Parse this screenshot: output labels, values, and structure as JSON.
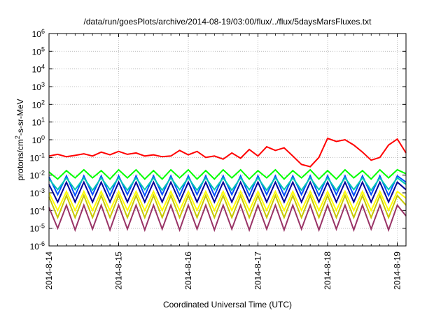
{
  "chart_data": {
    "type": "line",
    "title": "/data/run/goesPlots/archive/2014-08-19/03:00/flux/../flux/5daysMarsFluxes.txt",
    "xlabel": "Coordinated Universal Time (UTC)",
    "ylabel": {
      "prefix": "protons/cm",
      "sup": "2",
      "suffix": "-s-sr-MeV"
    },
    "y_scale": "log",
    "ylim": [
      1e-06,
      1000000.0
    ],
    "y_ticks": [
      {
        "base": "10",
        "exp": "-6"
      },
      {
        "base": "10",
        "exp": "-5"
      },
      {
        "base": "10",
        "exp": "-4"
      },
      {
        "base": "10",
        "exp": "-3"
      },
      {
        "base": "10",
        "exp": "-2"
      },
      {
        "base": "10",
        "exp": "-1"
      },
      {
        "base": "10",
        "exp": "0"
      },
      {
        "base": "10",
        "exp": "1"
      },
      {
        "base": "10",
        "exp": "2"
      },
      {
        "base": "10",
        "exp": "3"
      },
      {
        "base": "10",
        "exp": "4"
      },
      {
        "base": "10",
        "exp": "5"
      },
      {
        "base": "10",
        "exp": "6"
      }
    ],
    "x_range": [
      "2014-08-14 00:00",
      "2014-08-19 03:00"
    ],
    "x_ticks": [
      "2014-8-14",
      "2014-8-15",
      "2014-8-16",
      "2014-8-17",
      "2014-8-18",
      "2014-8-19"
    ],
    "grid": true,
    "legend": "none",
    "series": [
      {
        "color": "#ff0000",
        "x": [
          "2014-08-14 00:00",
          "2014-08-14 03:00",
          "2014-08-14 06:00",
          "2014-08-14 09:00",
          "2014-08-14 12:00",
          "2014-08-14 15:00",
          "2014-08-14 18:00",
          "2014-08-14 21:00",
          "2014-08-15 00:00",
          "2014-08-15 03:00",
          "2014-08-15 06:00",
          "2014-08-15 09:00",
          "2014-08-15 12:00",
          "2014-08-15 15:00",
          "2014-08-15 18:00",
          "2014-08-15 21:00",
          "2014-08-16 00:00",
          "2014-08-16 03:00",
          "2014-08-16 06:00",
          "2014-08-16 09:00",
          "2014-08-16 12:00",
          "2014-08-16 15:00",
          "2014-08-16 18:00",
          "2014-08-16 21:00",
          "2014-08-17 00:00",
          "2014-08-17 03:00",
          "2014-08-17 06:00",
          "2014-08-17 09:00",
          "2014-08-17 12:00",
          "2014-08-17 15:00",
          "2014-08-17 18:00",
          "2014-08-17 21:00",
          "2014-08-18 00:00",
          "2014-08-18 03:00",
          "2014-08-18 06:00",
          "2014-08-18 09:00",
          "2014-08-18 12:00",
          "2014-08-18 15:00",
          "2014-08-18 18:00",
          "2014-08-18 21:00",
          "2014-08-19 00:00",
          "2014-08-19 03:00"
        ],
        "y": [
          0.12,
          0.15,
          0.11,
          0.13,
          0.16,
          0.12,
          0.2,
          0.14,
          0.22,
          0.15,
          0.18,
          0.12,
          0.14,
          0.11,
          0.12,
          0.25,
          0.14,
          0.22,
          0.1,
          0.12,
          0.08,
          0.18,
          0.09,
          0.28,
          0.12,
          0.4,
          0.25,
          0.35,
          0.12,
          0.04,
          0.03,
          0.1,
          1.2,
          0.8,
          1.0,
          0.5,
          0.2,
          0.07,
          0.1,
          0.5,
          1.1,
          0.18
        ]
      },
      {
        "color": "#00ff00",
        "x": [
          "2014-08-14 00:00",
          "2014-08-14 03:00",
          "2014-08-14 06:00",
          "2014-08-14 09:00",
          "2014-08-14 12:00",
          "2014-08-14 15:00",
          "2014-08-14 18:00",
          "2014-08-14 21:00",
          "2014-08-15 00:00",
          "2014-08-15 03:00",
          "2014-08-15 06:00",
          "2014-08-15 09:00",
          "2014-08-15 12:00",
          "2014-08-15 15:00",
          "2014-08-15 18:00",
          "2014-08-15 21:00",
          "2014-08-16 00:00",
          "2014-08-16 03:00",
          "2014-08-16 06:00",
          "2014-08-16 09:00",
          "2014-08-16 12:00",
          "2014-08-16 15:00",
          "2014-08-16 18:00",
          "2014-08-16 21:00",
          "2014-08-17 00:00",
          "2014-08-17 03:00",
          "2014-08-17 06:00",
          "2014-08-17 09:00",
          "2014-08-17 12:00",
          "2014-08-17 15:00",
          "2014-08-17 18:00",
          "2014-08-17 21:00",
          "2014-08-18 00:00",
          "2014-08-18 03:00",
          "2014-08-18 06:00",
          "2014-08-18 09:00",
          "2014-08-18 12:00",
          "2014-08-18 15:00",
          "2014-08-18 18:00",
          "2014-08-18 21:00",
          "2014-08-19 00:00",
          "2014-08-19 03:00"
        ],
        "y": [
          0.015,
          0.006,
          0.018,
          0.007,
          0.02,
          0.007,
          0.018,
          0.006,
          0.02,
          0.007,
          0.02,
          0.006,
          0.018,
          0.006,
          0.02,
          0.007,
          0.02,
          0.006,
          0.018,
          0.006,
          0.02,
          0.007,
          0.02,
          0.006,
          0.018,
          0.007,
          0.02,
          0.006,
          0.018,
          0.007,
          0.02,
          0.006,
          0.018,
          0.006,
          0.02,
          0.007,
          0.018,
          0.006,
          0.02,
          0.007,
          0.02,
          0.012
        ]
      },
      {
        "color": "#00c8b4",
        "x": [
          "2014-08-14 00:00",
          "2014-08-14 03:00",
          "2014-08-14 06:00",
          "2014-08-14 09:00",
          "2014-08-14 12:00",
          "2014-08-14 15:00",
          "2014-08-14 18:00",
          "2014-08-14 21:00",
          "2014-08-15 00:00",
          "2014-08-15 03:00",
          "2014-08-15 06:00",
          "2014-08-15 09:00",
          "2014-08-15 12:00",
          "2014-08-15 15:00",
          "2014-08-15 18:00",
          "2014-08-15 21:00",
          "2014-08-16 00:00",
          "2014-08-16 03:00",
          "2014-08-16 06:00",
          "2014-08-16 09:00",
          "2014-08-16 12:00",
          "2014-08-16 15:00",
          "2014-08-16 18:00",
          "2014-08-16 21:00",
          "2014-08-17 00:00",
          "2014-08-17 03:00",
          "2014-08-17 06:00",
          "2014-08-17 09:00",
          "2014-08-17 12:00",
          "2014-08-17 15:00",
          "2014-08-17 18:00",
          "2014-08-17 21:00",
          "2014-08-18 00:00",
          "2014-08-18 03:00",
          "2014-08-18 06:00",
          "2014-08-18 09:00",
          "2014-08-18 12:00",
          "2014-08-18 15:00",
          "2014-08-18 18:00",
          "2014-08-18 21:00",
          "2014-08-19 00:00",
          "2014-08-19 03:00"
        ],
        "y": [
          0.006,
          0.0015,
          0.007,
          0.0015,
          0.007,
          0.0014,
          0.007,
          0.0015,
          0.007,
          0.0014,
          0.007,
          0.0015,
          0.007,
          0.0014,
          0.007,
          0.0015,
          0.007,
          0.0014,
          0.007,
          0.0015,
          0.007,
          0.0014,
          0.007,
          0.0015,
          0.007,
          0.0014,
          0.007,
          0.0015,
          0.007,
          0.0014,
          0.007,
          0.0015,
          0.007,
          0.0014,
          0.007,
          0.0015,
          0.007,
          0.0014,
          0.007,
          0.0015,
          0.007,
          0.003
        ]
      },
      {
        "color": "#0050ff",
        "x": [
          "2014-08-14 00:00",
          "2014-08-14 03:00",
          "2014-08-14 06:00",
          "2014-08-14 09:00",
          "2014-08-14 12:00",
          "2014-08-14 15:00",
          "2014-08-14 18:00",
          "2014-08-14 21:00",
          "2014-08-15 00:00",
          "2014-08-15 03:00",
          "2014-08-15 06:00",
          "2014-08-15 09:00",
          "2014-08-15 12:00",
          "2014-08-15 15:00",
          "2014-08-15 18:00",
          "2014-08-15 21:00",
          "2014-08-16 00:00",
          "2014-08-16 03:00",
          "2014-08-16 06:00",
          "2014-08-16 09:00",
          "2014-08-16 12:00",
          "2014-08-16 15:00",
          "2014-08-16 18:00",
          "2014-08-16 21:00",
          "2014-08-17 00:00",
          "2014-08-17 03:00",
          "2014-08-17 06:00",
          "2014-08-17 09:00",
          "2014-08-17 12:00",
          "2014-08-17 15:00",
          "2014-08-17 18:00",
          "2014-08-17 21:00",
          "2014-08-18 00:00",
          "2014-08-18 03:00",
          "2014-08-18 06:00",
          "2014-08-18 09:00",
          "2014-08-18 12:00",
          "2014-08-18 15:00",
          "2014-08-18 18:00",
          "2014-08-18 21:00",
          "2014-08-19 00:00",
          "2014-08-19 03:00"
        ],
        "y": [
          0.008,
          0.0008,
          0.009,
          0.0007,
          0.009,
          0.0008,
          0.009,
          0.0007,
          0.009,
          0.0008,
          0.009,
          0.0007,
          0.009,
          0.0008,
          0.009,
          0.0007,
          0.009,
          0.0008,
          0.009,
          0.0007,
          0.009,
          0.0008,
          0.009,
          0.0007,
          0.009,
          0.0008,
          0.009,
          0.0007,
          0.009,
          0.0008,
          0.009,
          0.0007,
          0.009,
          0.0008,
          0.009,
          0.0007,
          0.009,
          0.0008,
          0.009,
          0.0007,
          0.009,
          0.004
        ]
      },
      {
        "color": "#000099",
        "x": [
          "2014-08-14 00:00",
          "2014-08-14 03:00",
          "2014-08-14 06:00",
          "2014-08-14 09:00",
          "2014-08-14 12:00",
          "2014-08-14 15:00",
          "2014-08-14 18:00",
          "2014-08-14 21:00",
          "2014-08-15 00:00",
          "2014-08-15 03:00",
          "2014-08-15 06:00",
          "2014-08-15 09:00",
          "2014-08-15 12:00",
          "2014-08-15 15:00",
          "2014-08-15 18:00",
          "2014-08-15 21:00",
          "2014-08-16 00:00",
          "2014-08-16 03:00",
          "2014-08-16 06:00",
          "2014-08-16 09:00",
          "2014-08-16 12:00",
          "2014-08-16 15:00",
          "2014-08-16 18:00",
          "2014-08-16 21:00",
          "2014-08-17 00:00",
          "2014-08-17 03:00",
          "2014-08-17 06:00",
          "2014-08-17 09:00",
          "2014-08-17 12:00",
          "2014-08-17 15:00",
          "2014-08-17 18:00",
          "2014-08-17 21:00",
          "2014-08-18 00:00",
          "2014-08-18 03:00",
          "2014-08-18 06:00",
          "2014-08-18 09:00",
          "2014-08-18 12:00",
          "2014-08-18 15:00",
          "2014-08-18 18:00",
          "2014-08-18 21:00",
          "2014-08-19 00:00",
          "2014-08-19 03:00"
        ],
        "y": [
          0.003,
          0.0003,
          0.004,
          0.0003,
          0.004,
          0.0003,
          0.004,
          0.0003,
          0.004,
          0.0003,
          0.004,
          0.0003,
          0.004,
          0.0003,
          0.004,
          0.0003,
          0.004,
          0.0003,
          0.004,
          0.0003,
          0.004,
          0.0003,
          0.004,
          0.0003,
          0.004,
          0.0003,
          0.004,
          0.0003,
          0.004,
          0.0003,
          0.004,
          0.0003,
          0.004,
          0.0003,
          0.004,
          0.0003,
          0.004,
          0.0003,
          0.004,
          0.0003,
          0.004,
          0.0015
        ]
      },
      {
        "color": "#ffff00",
        "x": [
          "2014-08-14 00:00",
          "2014-08-14 03:00",
          "2014-08-14 06:00",
          "2014-08-14 09:00",
          "2014-08-14 12:00",
          "2014-08-14 15:00",
          "2014-08-14 18:00",
          "2014-08-14 21:00",
          "2014-08-15 00:00",
          "2014-08-15 03:00",
          "2014-08-15 06:00",
          "2014-08-15 09:00",
          "2014-08-15 12:00",
          "2014-08-15 15:00",
          "2014-08-15 18:00",
          "2014-08-15 21:00",
          "2014-08-16 00:00",
          "2014-08-16 03:00",
          "2014-08-16 06:00",
          "2014-08-16 09:00",
          "2014-08-16 12:00",
          "2014-08-16 15:00",
          "2014-08-16 18:00",
          "2014-08-16 21:00",
          "2014-08-17 00:00",
          "2014-08-17 03:00",
          "2014-08-17 06:00",
          "2014-08-17 09:00",
          "2014-08-17 12:00",
          "2014-08-17 15:00",
          "2014-08-17 18:00",
          "2014-08-17 21:00",
          "2014-08-18 00:00",
          "2014-08-18 03:00",
          "2014-08-18 06:00",
          "2014-08-18 09:00",
          "2014-08-18 12:00",
          "2014-08-18 15:00",
          "2014-08-18 18:00",
          "2014-08-18 21:00",
          "2014-08-19 00:00",
          "2014-08-19 03:00"
        ],
        "y": [
          0.001,
          0.0001,
          0.0012,
          0.0001,
          0.0012,
          0.0001,
          0.0012,
          0.0001,
          0.0012,
          0.0001,
          0.0012,
          0.0001,
          0.0012,
          0.0001,
          0.0012,
          0.0001,
          0.0012,
          0.0001,
          0.0012,
          0.0001,
          0.0012,
          0.0001,
          0.0012,
          0.0001,
          0.0012,
          0.0001,
          0.0012,
          0.0001,
          0.0012,
          0.0001,
          0.0012,
          0.0001,
          0.0012,
          0.0001,
          0.0012,
          0.0001,
          0.0012,
          0.0001,
          0.0012,
          0.0001,
          0.0012,
          0.0005
        ]
      },
      {
        "color": "#c8c800",
        "x": [
          "2014-08-14 00:00",
          "2014-08-14 03:00",
          "2014-08-14 06:00",
          "2014-08-14 09:00",
          "2014-08-14 12:00",
          "2014-08-14 15:00",
          "2014-08-14 18:00",
          "2014-08-14 21:00",
          "2014-08-15 00:00",
          "2014-08-15 03:00",
          "2014-08-15 06:00",
          "2014-08-15 09:00",
          "2014-08-15 12:00",
          "2014-08-15 15:00",
          "2014-08-15 18:00",
          "2014-08-15 21:00",
          "2014-08-16 00:00",
          "2014-08-16 03:00",
          "2014-08-16 06:00",
          "2014-08-16 09:00",
          "2014-08-16 12:00",
          "2014-08-16 15:00",
          "2014-08-16 18:00",
          "2014-08-16 21:00",
          "2014-08-17 00:00",
          "2014-08-17 03:00",
          "2014-08-17 06:00",
          "2014-08-17 09:00",
          "2014-08-17 12:00",
          "2014-08-17 15:00",
          "2014-08-17 18:00",
          "2014-08-17 21:00",
          "2014-08-18 00:00",
          "2014-08-18 03:00",
          "2014-08-18 06:00",
          "2014-08-18 09:00",
          "2014-08-18 12:00",
          "2014-08-18 15:00",
          "2014-08-18 18:00",
          "2014-08-18 21:00",
          "2014-08-19 00:00",
          "2014-08-19 03:00"
        ],
        "y": [
          0.0006,
          4e-05,
          0.0007,
          4e-05,
          0.0007,
          4e-05,
          0.0007,
          4e-05,
          0.0007,
          4e-05,
          0.0007,
          4e-05,
          0.0007,
          4e-05,
          0.0007,
          4e-05,
          0.0007,
          4e-05,
          0.0007,
          4e-05,
          0.0007,
          4e-05,
          0.0007,
          4e-05,
          0.0007,
          4e-05,
          0.0007,
          4e-05,
          0.0007,
          4e-05,
          0.0007,
          4e-05,
          0.0007,
          4e-05,
          0.0007,
          4e-05,
          0.0007,
          4e-05,
          0.0007,
          4e-05,
          0.0007,
          0.0002
        ]
      },
      {
        "color": "#993366",
        "x": [
          "2014-08-14 00:00",
          "2014-08-14 03:00",
          "2014-08-14 06:00",
          "2014-08-14 09:00",
          "2014-08-14 12:00",
          "2014-08-14 15:00",
          "2014-08-14 18:00",
          "2014-08-14 21:00",
          "2014-08-15 00:00",
          "2014-08-15 03:00",
          "2014-08-15 06:00",
          "2014-08-15 09:00",
          "2014-08-15 12:00",
          "2014-08-15 15:00",
          "2014-08-15 18:00",
          "2014-08-15 21:00",
          "2014-08-16 00:00",
          "2014-08-16 03:00",
          "2014-08-16 06:00",
          "2014-08-16 09:00",
          "2014-08-16 12:00",
          "2014-08-16 15:00",
          "2014-08-16 18:00",
          "2014-08-16 21:00",
          "2014-08-17 00:00",
          "2014-08-17 03:00",
          "2014-08-17 06:00",
          "2014-08-17 09:00",
          "2014-08-17 12:00",
          "2014-08-17 15:00",
          "2014-08-17 18:00",
          "2014-08-17 21:00",
          "2014-08-18 00:00",
          "2014-08-18 03:00",
          "2014-08-18 06:00",
          "2014-08-18 09:00",
          "2014-08-18 12:00",
          "2014-08-18 15:00",
          "2014-08-18 18:00",
          "2014-08-18 21:00",
          "2014-08-19 00:00",
          "2014-08-19 03:00"
        ],
        "y": [
          0.00015,
          1e-05,
          0.0002,
          8e-06,
          0.0002,
          9e-06,
          0.0002,
          8e-06,
          0.0002,
          9e-06,
          0.0002,
          8e-06,
          0.0002,
          9e-06,
          0.0002,
          8e-06,
          0.0002,
          9e-06,
          0.0002,
          8e-06,
          0.0002,
          9e-06,
          0.0002,
          8e-06,
          0.0002,
          9e-06,
          0.0002,
          8e-06,
          0.0002,
          9e-06,
          0.0002,
          8e-06,
          0.0002,
          9e-06,
          0.0002,
          8e-06,
          0.0002,
          9e-06,
          0.0002,
          8e-06,
          0.0002,
          5e-05
        ]
      }
    ]
  }
}
